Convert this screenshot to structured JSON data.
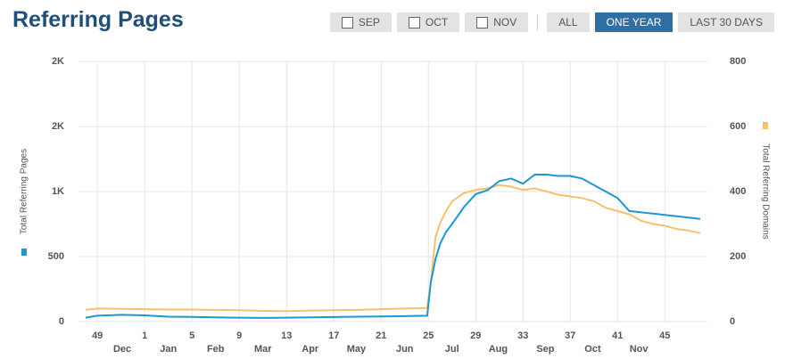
{
  "header": {
    "title": "Referring Pages",
    "month_filters": [
      "SEP",
      "OCT",
      "NOV"
    ],
    "range_buttons": [
      "ALL",
      "ONE YEAR",
      "LAST 30 DAYS"
    ],
    "active_range": 1
  },
  "chart_data": {
    "type": "line",
    "y_label": "Total Referring Pages",
    "y2_label": "Total Referring Domains",
    "x": [
      -1,
      0,
      2,
      4,
      6,
      8,
      10,
      12,
      14,
      16,
      18,
      20,
      22,
      24,
      26,
      27.9,
      28.2,
      28.6,
      29,
      29.5,
      30,
      31,
      32,
      33,
      34,
      35,
      36,
      37,
      38,
      39,
      40,
      41,
      42,
      43,
      44,
      45,
      46,
      47,
      48,
      49,
      50,
      51
    ],
    "xlim": [
      -1.6,
      51.6
    ],
    "xticks": [
      {
        "value": 0,
        "label": "49"
      },
      {
        "value": 4,
        "label": "1"
      },
      {
        "value": 8,
        "label": "5"
      },
      {
        "value": 12,
        "label": "9"
      },
      {
        "value": 16,
        "label": "13"
      },
      {
        "value": 20,
        "label": "17"
      },
      {
        "value": 24,
        "label": "21"
      },
      {
        "value": 28,
        "label": "25"
      },
      {
        "value": 32,
        "label": "29"
      },
      {
        "value": 36,
        "label": "33"
      },
      {
        "value": 40,
        "label": "37"
      },
      {
        "value": 44,
        "label": "41"
      },
      {
        "value": 48,
        "label": "45"
      }
    ],
    "month_ticks": [
      {
        "value": 2.1,
        "label": "Dec"
      },
      {
        "value": 6,
        "label": "Jan"
      },
      {
        "value": 10,
        "label": "Feb"
      },
      {
        "value": 14,
        "label": "Mar"
      },
      {
        "value": 18,
        "label": "Apr"
      },
      {
        "value": 21.9,
        "label": "May"
      },
      {
        "value": 26,
        "label": "Jun"
      },
      {
        "value": 30,
        "label": "Jul"
      },
      {
        "value": 33.9,
        "label": "Aug"
      },
      {
        "value": 37.9,
        "label": "Sep"
      },
      {
        "value": 41.9,
        "label": "Oct"
      },
      {
        "value": 45.8,
        "label": "Nov"
      }
    ],
    "ylim": [
      0,
      2000
    ],
    "yticks": [
      0,
      500,
      {
        "value": 1000,
        "label": "1K"
      },
      {
        "value": 1500,
        "label": "2K"
      },
      {
        "value": 2000,
        "label": "2K"
      }
    ],
    "y2lim": [
      0,
      800
    ],
    "y2ticks": [
      0,
      200,
      400,
      600,
      800
    ],
    "grid": true,
    "series": [
      {
        "color": "#1f95d4",
        "values": [
          30,
          45,
          52,
          48,
          38,
          36,
          32,
          30,
          28,
          30,
          32,
          35,
          38,
          40,
          42,
          45,
          300,
          480,
          600,
          690,
          750,
          880,
          980,
          1010,
          1080,
          1100,
          1060,
          1130,
          1130,
          1120,
          1120,
          1100,
          1050,
          1000,
          950,
          850,
          840,
          830,
          820,
          810,
          800,
          790
        ]
      },
      {
        "color": "#f7c06a",
        "axis": "y2",
        "values": [
          36,
          40,
          39,
          38,
          37,
          37,
          36,
          35,
          33,
          32,
          34,
          35,
          36,
          38,
          40,
          42,
          120,
          260,
          304,
          340,
          370,
          395,
          405,
          410,
          420,
          415,
          405,
          410,
          400,
          390,
          385,
          380,
          370,
          350,
          340,
          330,
          310,
          300,
          295,
          285,
          280,
          272
        ]
      }
    ]
  }
}
